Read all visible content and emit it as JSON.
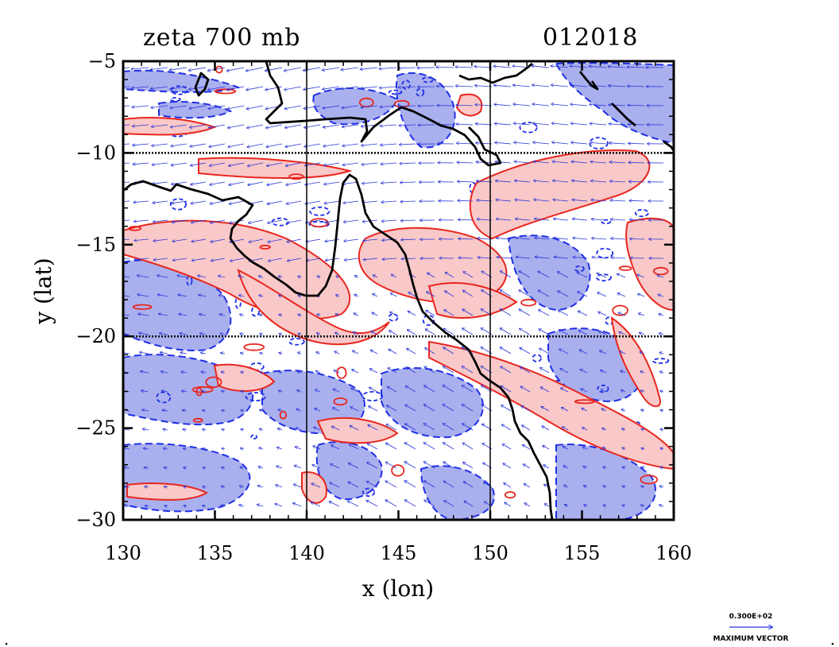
{
  "chart_data": {
    "type": "contour_map",
    "title": "zeta 700 mb",
    "subtitle": "012018",
    "xlabel": "x (lon)",
    "ylabel": "y (lat)",
    "xlim": [
      130,
      160
    ],
    "ylim": [
      -30,
      -5
    ],
    "x_ticks": [
      130,
      135,
      140,
      145,
      150,
      155,
      160
    ],
    "y_ticks": [
      -5,
      -10,
      -15,
      -20,
      -25,
      -30
    ],
    "gridlines_lon": [
      140,
      150
    ],
    "gridlines_lat": [
      -10,
      -20
    ],
    "colors": {
      "positive_fill": "#f9c8c8",
      "positive_line": "#e8261e",
      "negative_fill": "#aab0ee",
      "negative_line": "#1f2fe6",
      "vector": "#2a36d8",
      "coast": "#000000"
    },
    "legend": {
      "scale_label": "0.300E+02",
      "caption": "MAXIMUM VECTOR"
    }
  }
}
